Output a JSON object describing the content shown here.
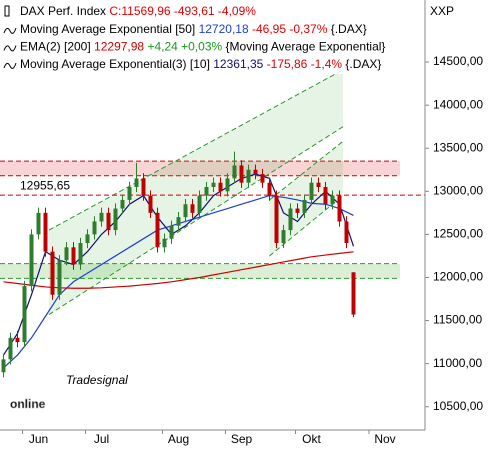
{
  "chart_data": {
    "type": "candlestick",
    "title": "DAX Perf. Index",
    "quote": "C:11569,96 -493,61 -4,09%",
    "quote_color": "#e00000",
    "axis_label": "XXP",
    "x": [
      0,
      2,
      4,
      6,
      8,
      10,
      12,
      14,
      16,
      18,
      20,
      22,
      24,
      26,
      28,
      30,
      32,
      34,
      36,
      38,
      40,
      42,
      44,
      46,
      48,
      50,
      52,
      54,
      56,
      58,
      60,
      62,
      64,
      66,
      68,
      70,
      72,
      74,
      76,
      78,
      80,
      82,
      84,
      86,
      88,
      90,
      92,
      94,
      96,
      98,
      100
    ],
    "open": [
      10900,
      11050,
      11300,
      11250,
      11900,
      12500,
      12750,
      12300,
      11800,
      12200,
      12350,
      12150,
      12400,
      12500,
      12650,
      12750,
      12550,
      12800,
      12900,
      13050,
      13150,
      12950,
      12750,
      12350,
      12450,
      12600,
      12700,
      12850,
      12750,
      12950,
      13050,
      13100,
      13000,
      13150,
      13300,
      13100,
      13250,
      13200,
      13100,
      12950,
      12400,
      12550,
      12800,
      12750,
      12900,
      13100,
      13050,
      12850,
      12950,
      12650,
      12060
    ],
    "high": [
      11110,
      11360,
      11380,
      11960,
      12560,
      12810,
      12810,
      12360,
      12260,
      12410,
      12410,
      12460,
      12560,
      12710,
      12810,
      12810,
      12860,
      12960,
      13110,
      13330,
      13210,
      13010,
      12810,
      12510,
      12660,
      12760,
      12910,
      12910,
      13010,
      13110,
      13160,
      13160,
      13210,
      13460,
      13360,
      13310,
      13310,
      13260,
      13160,
      13010,
      12610,
      12860,
      12860,
      12960,
      13160,
      13160,
      13110,
      13010,
      13010,
      12710,
      12060
    ],
    "low": [
      10840,
      10990,
      11190,
      11190,
      11840,
      12440,
      12240,
      11740,
      11740,
      12140,
      12090,
      12090,
      12340,
      12440,
      12590,
      12490,
      12490,
      12740,
      12840,
      12990,
      12890,
      12690,
      12290,
      12290,
      12390,
      12540,
      12640,
      12690,
      12690,
      12890,
      12990,
      12940,
      12940,
      13090,
      13040,
      13040,
      13140,
      13040,
      12890,
      12340,
      12340,
      12490,
      12690,
      12690,
      12840,
      12990,
      12790,
      12790,
      12590,
      12340,
      11540
    ],
    "close": [
      11050,
      11300,
      11250,
      11900,
      12500,
      12750,
      12300,
      11800,
      12200,
      12350,
      12150,
      12400,
      12500,
      12650,
      12750,
      12550,
      12800,
      12900,
      13050,
      13150,
      12950,
      12750,
      12350,
      12450,
      12600,
      12700,
      12850,
      12750,
      12950,
      13050,
      13100,
      13000,
      13150,
      13300,
      13100,
      13250,
      13200,
      13100,
      12950,
      12400,
      12550,
      12800,
      12750,
      12900,
      13100,
      13050,
      12850,
      12950,
      12650,
      12400,
      11569.96
    ],
    "up_color": "#2e7d2e",
    "down_color": "#c00000",
    "xlim": [
      -1,
      120
    ],
    "xticks": [
      {
        "value": 10,
        "label": "Jun"
      },
      {
        "value": 28,
        "label": "Jul"
      },
      {
        "value": 50,
        "label": "Aug"
      },
      {
        "value": 68,
        "label": "Sep"
      },
      {
        "value": 88,
        "label": "Okt"
      },
      {
        "value": 109,
        "label": "Nov"
      }
    ],
    "ylim": [
      10230,
      15220
    ],
    "yticks": [
      {
        "value": 10500,
        "label": "10500,00"
      },
      {
        "value": 11000,
        "label": "11000,00"
      },
      {
        "value": 11500,
        "label": "11500,00"
      },
      {
        "value": 12000,
        "label": "12000,00"
      },
      {
        "value": 12500,
        "label": "12500,00"
      },
      {
        "value": 13000,
        "label": "13000,00"
      },
      {
        "value": 13500,
        "label": "13500,00"
      },
      {
        "value": 14000,
        "label": "14000,00"
      },
      {
        "value": 14500,
        "label": "14500,00"
      }
    ],
    "overlays": [
      {
        "name": "Moving Average Exponential [50]",
        "legend_value": "12720,18",
        "legend_change": "-46,95 -0,37%",
        "change_color": "#e00000",
        "symbol": "{.DAX}",
        "color": "#1f3fd0",
        "x": [
          0,
          4,
          8,
          12,
          16,
          20,
          24,
          28,
          32,
          36,
          40,
          44,
          48,
          52,
          56,
          60,
          64,
          68,
          72,
          76,
          80,
          84,
          88,
          92,
          96,
          100
        ],
        "values": [
          10950,
          11100,
          11300,
          11550,
          11800,
          11950,
          12050,
          12150,
          12250,
          12350,
          12450,
          12550,
          12600,
          12650,
          12700,
          12750,
          12800,
          12850,
          12900,
          12950,
          12930,
          12900,
          12860,
          12850,
          12800,
          12720
        ]
      },
      {
        "name": "EMA(2) [200]",
        "legend_value": "12297,98",
        "legend_change": "+4,24 +0,03%",
        "change_color": "#1a9a1a",
        "symbol": "{Moving Average Exponential}",
        "color": "#cc0000",
        "x": [
          0,
          4,
          8,
          12,
          16,
          20,
          24,
          28,
          32,
          36,
          40,
          44,
          48,
          52,
          56,
          60,
          64,
          68,
          72,
          76,
          80,
          84,
          88,
          92,
          96,
          100
        ],
        "values": [
          11950,
          11930,
          11910,
          11890,
          11880,
          11875,
          11875,
          11880,
          11890,
          11900,
          11915,
          11930,
          11950,
          11975,
          12000,
          12030,
          12060,
          12090,
          12120,
          12150,
          12180,
          12210,
          12240,
          12260,
          12280,
          12297.98
        ]
      },
      {
        "name": "Moving Average Exponential(3) [10]",
        "legend_value": "12361,35",
        "legend_change": "-175,86 -1,4%",
        "change_color": "#e00000",
        "symbol": "{.DAX}",
        "color": "#101070",
        "x": [
          0,
          4,
          8,
          12,
          16,
          20,
          24,
          28,
          32,
          36,
          40,
          44,
          48,
          52,
          56,
          60,
          64,
          68,
          72,
          76,
          80,
          84,
          88,
          92,
          96,
          100
        ],
        "values": [
          11100,
          11350,
          11800,
          12300,
          12200,
          12150,
          12300,
          12500,
          12650,
          12850,
          12950,
          12700,
          12500,
          12600,
          12750,
          12950,
          13050,
          13150,
          13200,
          13150,
          12750,
          12650,
          12850,
          13000,
          12850,
          12361.35
        ]
      }
    ],
    "levels": [
      {
        "value": 12955.65,
        "label": "12955,65",
        "color": "#d00000"
      }
    ],
    "zones": [
      {
        "low": 13180,
        "high": 13350,
        "fill": "#f9d4d4",
        "line": "#d00000"
      },
      {
        "low": 11990,
        "high": 12160,
        "fill": "#dcefd6",
        "line": "#2a9a2a"
      }
    ],
    "channels": [
      {
        "x": [
          13,
          97
        ],
        "upper": [
          12550,
          14410
        ],
        "lower": [
          11570,
          13750
        ]
      },
      {
        "x": [
          76,
          97
        ],
        "upper": [
          12900,
          13580
        ],
        "lower": [
          12250,
          12950
        ]
      }
    ],
    "watermark": [
      "Tradesignal",
      "online"
    ]
  }
}
